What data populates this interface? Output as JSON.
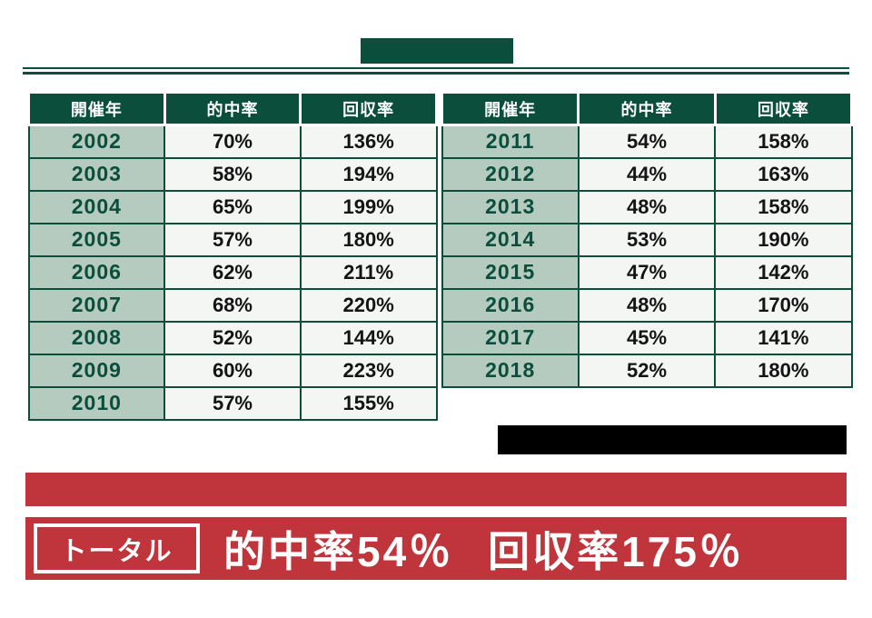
{
  "colors": {
    "dark_green": "#0b4e3b",
    "sage_green": "#b6cbc0",
    "cell_background": "#f4f6f4",
    "red": "#c0353c",
    "black": "#000000",
    "white": "#ffffff"
  },
  "table": {
    "columns": [
      "開催年",
      "的中率",
      "回収率"
    ],
    "left_rows": [
      {
        "year": "2002",
        "hit": "70%",
        "recovery": "136%"
      },
      {
        "year": "2003",
        "hit": "58%",
        "recovery": "194%"
      },
      {
        "year": "2004",
        "hit": "65%",
        "recovery": "199%"
      },
      {
        "year": "2005",
        "hit": "57%",
        "recovery": "180%"
      },
      {
        "year": "2006",
        "hit": "62%",
        "recovery": "211%"
      },
      {
        "year": "2007",
        "hit": "68%",
        "recovery": "220%"
      },
      {
        "year": "2008",
        "hit": "52%",
        "recovery": "144%"
      },
      {
        "year": "2009",
        "hit": "60%",
        "recovery": "223%"
      },
      {
        "year": "2010",
        "hit": "57%",
        "recovery": "155%"
      }
    ],
    "right_rows": [
      {
        "year": "2011",
        "hit": "54%",
        "recovery": "158%"
      },
      {
        "year": "2012",
        "hit": "44%",
        "recovery": "163%"
      },
      {
        "year": "2013",
        "hit": "48%",
        "recovery": "158%"
      },
      {
        "year": "2014",
        "hit": "53%",
        "recovery": "190%"
      },
      {
        "year": "2015",
        "hit": "47%",
        "recovery": "142%"
      },
      {
        "year": "2016",
        "hit": "48%",
        "recovery": "170%"
      },
      {
        "year": "2017",
        "hit": "45%",
        "recovery": "141%"
      },
      {
        "year": "2018",
        "hit": "52%",
        "recovery": "180%"
      }
    ]
  },
  "banner": {
    "total_label": "トータル",
    "hit_text": "的中率54％",
    "recovery_text": "回収率175％"
  },
  "chart_data": {
    "type": "table",
    "title": "",
    "columns": [
      "開催年",
      "的中率",
      "回収率"
    ],
    "rows": [
      [
        "2002",
        "70%",
        "136%"
      ],
      [
        "2003",
        "58%",
        "194%"
      ],
      [
        "2004",
        "65%",
        "199%"
      ],
      [
        "2005",
        "57%",
        "180%"
      ],
      [
        "2006",
        "62%",
        "211%"
      ],
      [
        "2007",
        "68%",
        "220%"
      ],
      [
        "2008",
        "52%",
        "144%"
      ],
      [
        "2009",
        "60%",
        "223%"
      ],
      [
        "2010",
        "57%",
        "155%"
      ],
      [
        "2011",
        "54%",
        "158%"
      ],
      [
        "2012",
        "44%",
        "163%"
      ],
      [
        "2013",
        "48%",
        "158%"
      ],
      [
        "2014",
        "53%",
        "190%"
      ],
      [
        "2015",
        "47%",
        "142%"
      ],
      [
        "2016",
        "48%",
        "170%"
      ],
      [
        "2017",
        "45%",
        "141%"
      ],
      [
        "2018",
        "52%",
        "180%"
      ]
    ],
    "total": {
      "label": "トータル",
      "hit_rate": "54%",
      "recovery_rate": "175%"
    },
    "layout": {
      "split": "2002-2010 left table, 2011-2018 right table",
      "grid": true
    }
  }
}
